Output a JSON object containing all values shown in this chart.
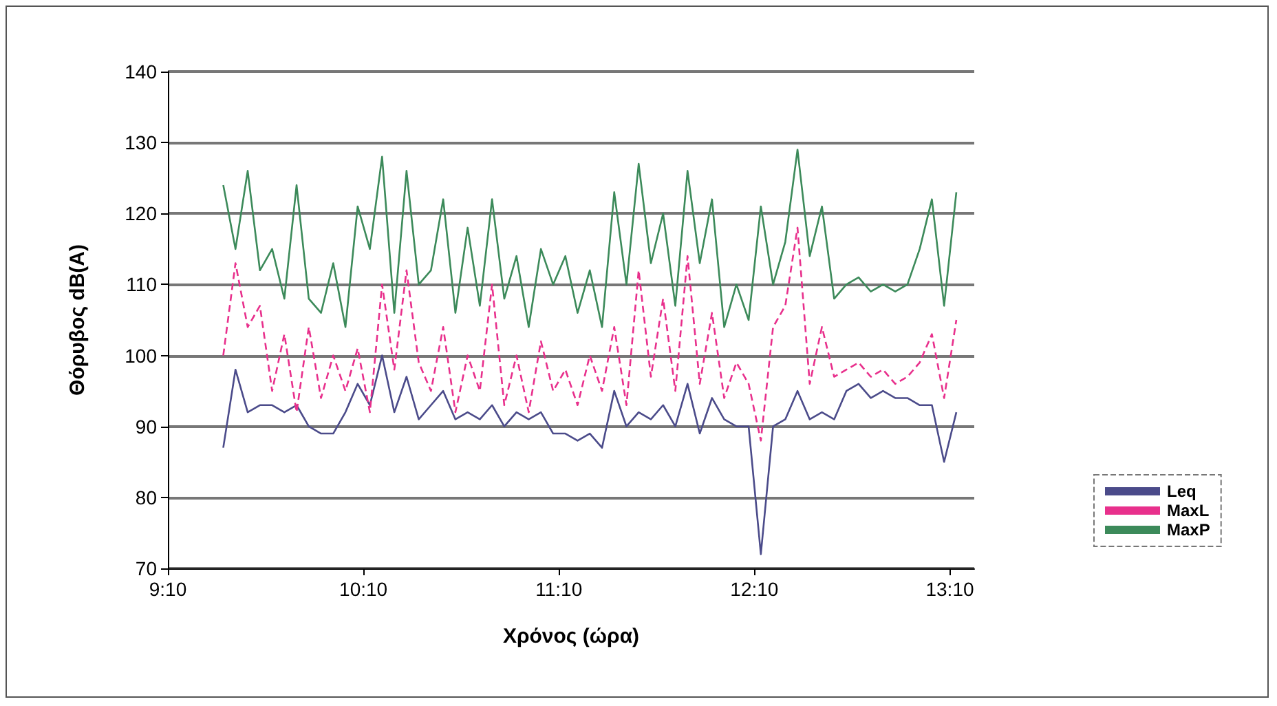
{
  "chart_data": {
    "type": "line",
    "xlabel": "Χρόνος (ώρα)",
    "ylabel": "Θόρυβος dB(A)",
    "x": [
      9.45,
      9.5125,
      9.575,
      9.6375,
      9.7,
      9.7625,
      9.825,
      9.8875,
      9.95,
      10.0125,
      10.075,
      10.1375,
      10.2,
      10.2625,
      10.325,
      10.3875,
      10.45,
      10.5125,
      10.575,
      10.6375,
      10.7,
      10.7625,
      10.825,
      10.8875,
      10.95,
      11.0125,
      11.075,
      11.1375,
      11.2,
      11.2625,
      11.325,
      11.3875,
      11.45,
      11.5125,
      11.575,
      11.6375,
      11.7,
      11.7625,
      11.825,
      11.8875,
      11.95,
      12.0125,
      12.075,
      12.1375,
      12.2,
      12.2625,
      12.325,
      12.3875,
      12.45,
      12.5125,
      12.575,
      12.6375,
      12.7,
      12.7625,
      12.825,
      12.8875,
      12.95,
      13.0125,
      13.075,
      13.1375,
      13.2
    ],
    "series": [
      {
        "name": "Leq",
        "color": "#4b4b8a",
        "line_style": "solid",
        "values": [
          87,
          98,
          92,
          93,
          93,
          92,
          93,
          90,
          89,
          89,
          92,
          96,
          93,
          100,
          92,
          97,
          91,
          93,
          95,
          91,
          92,
          91,
          93,
          90,
          92,
          91,
          92,
          89,
          89,
          88,
          89,
          87,
          95,
          90,
          92,
          91,
          93,
          90,
          96,
          89,
          94,
          91,
          90,
          90,
          72,
          90,
          91,
          95,
          91,
          92,
          91,
          95,
          96,
          94,
          95,
          94,
          94,
          93,
          93,
          85,
          92
        ]
      },
      {
        "name": "MaxL",
        "color": "#e8308c",
        "line_style": "dashed",
        "values": [
          100,
          113,
          104,
          107,
          95,
          103,
          92,
          104,
          94,
          100,
          95,
          101,
          92,
          110,
          98,
          112,
          99,
          95,
          104,
          92,
          100,
          95,
          110,
          93,
          100,
          92,
          102,
          95,
          98,
          93,
          100,
          95,
          104,
          93,
          112,
          97,
          108,
          95,
          114,
          96,
          106,
          94,
          99,
          96,
          88,
          104,
          107,
          118,
          96,
          104,
          97,
          98,
          99,
          97,
          98,
          96,
          97,
          99,
          103,
          94,
          105
        ]
      },
      {
        "name": "MaxP",
        "color": "#3c8a5a",
        "line_style": "solid",
        "values": [
          124,
          115,
          126,
          112,
          115,
          108,
          124,
          108,
          106,
          113,
          104,
          121,
          115,
          128,
          106,
          126,
          110,
          112,
          122,
          106,
          118,
          107,
          122,
          108,
          114,
          104,
          115,
          110,
          114,
          106,
          112,
          104,
          123,
          110,
          127,
          113,
          120,
          107,
          126,
          113,
          122,
          104,
          110,
          105,
          121,
          110,
          116,
          129,
          114,
          121,
          108,
          110,
          111,
          109,
          110,
          109,
          110,
          115,
          122,
          107,
          123
        ]
      }
    ],
    "xlim": [
      9.1667,
      13.2917
    ],
    "xticks": [
      {
        "value": 9.1667,
        "label": "9:10"
      },
      {
        "value": 10.1667,
        "label": "10:10"
      },
      {
        "value": 11.1667,
        "label": "11:10"
      },
      {
        "value": 12.1667,
        "label": "12:10"
      },
      {
        "value": 13.1667,
        "label": "13:10"
      }
    ],
    "ylim": [
      70,
      140
    ],
    "yticks": [
      70,
      80,
      90,
      100,
      110,
      120,
      130,
      140
    ],
    "grid": "y",
    "legend": "right",
    "marker": "none"
  }
}
